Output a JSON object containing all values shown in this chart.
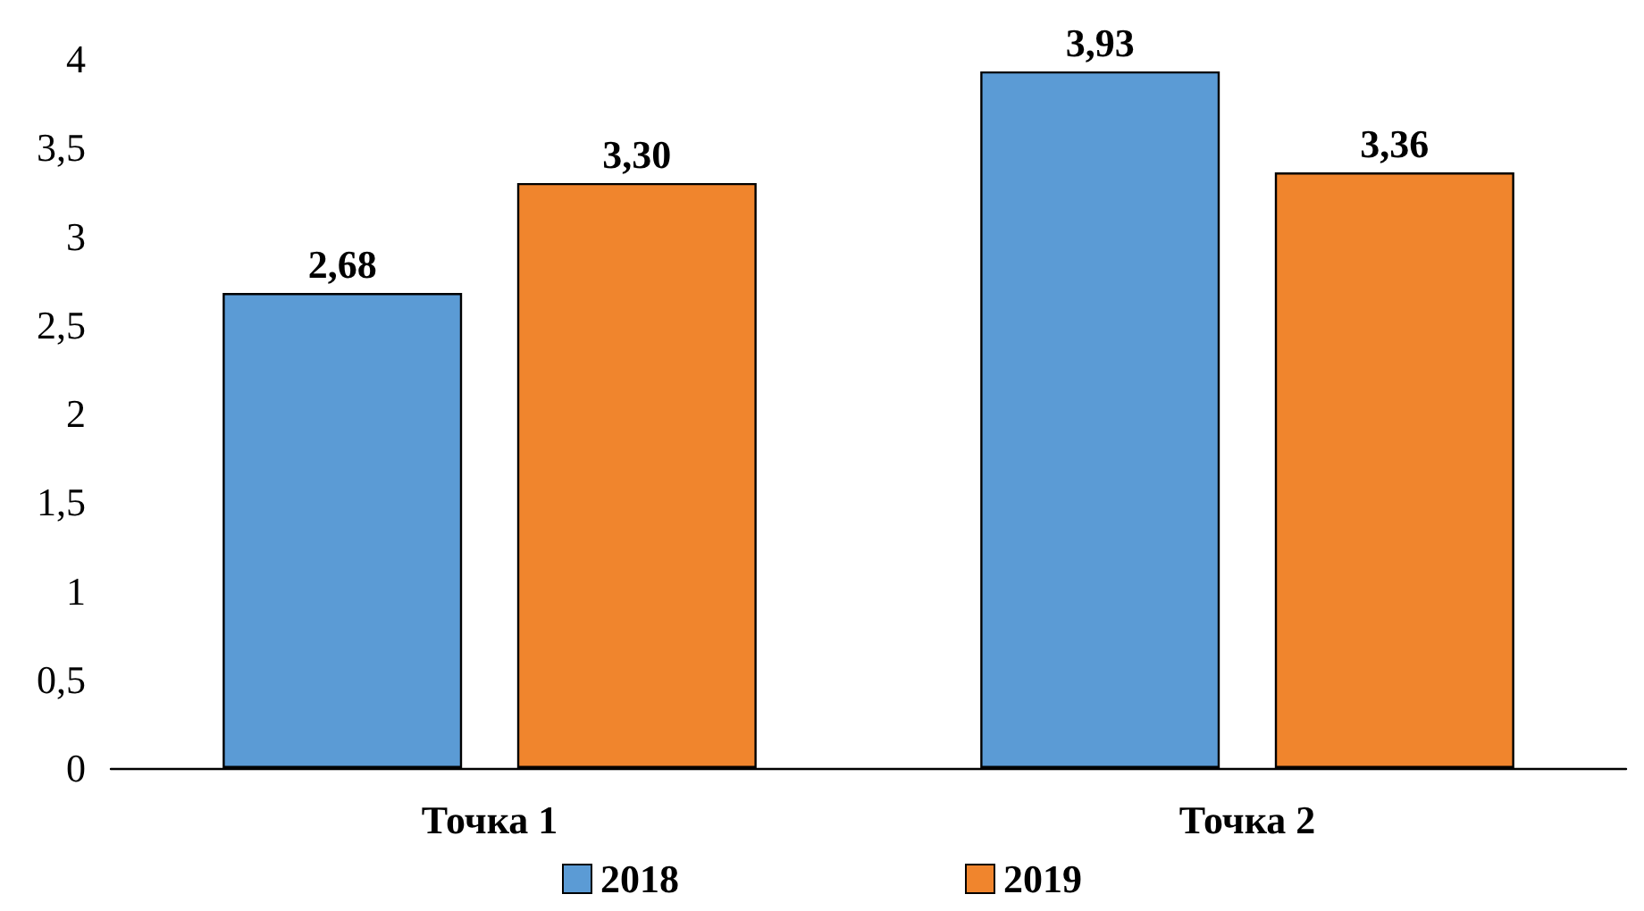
{
  "chart_data": {
    "type": "bar",
    "categories": [
      "Точка 1",
      "Точка 2"
    ],
    "series": [
      {
        "name": "2018",
        "color": "#5b9bd5",
        "values": [
          2.68,
          3.93
        ],
        "value_labels": [
          "2,68",
          "3,93"
        ]
      },
      {
        "name": "2019",
        "color": "#f0852d",
        "values": [
          3.3,
          3.36
        ],
        "value_labels": [
          "3,30",
          "3,36"
        ]
      }
    ],
    "ylim": [
      0,
      4
    ],
    "yticks": [
      0,
      {
        "value": 0.5,
        "label": "0,5"
      },
      1,
      {
        "value": 1.5,
        "label": "1,5"
      },
      2,
      {
        "value": 2.5,
        "label": "2,5"
      },
      3,
      {
        "value": 3.5,
        "label": "3,5"
      },
      4
    ],
    "grid": false,
    "legend": "bottom"
  }
}
